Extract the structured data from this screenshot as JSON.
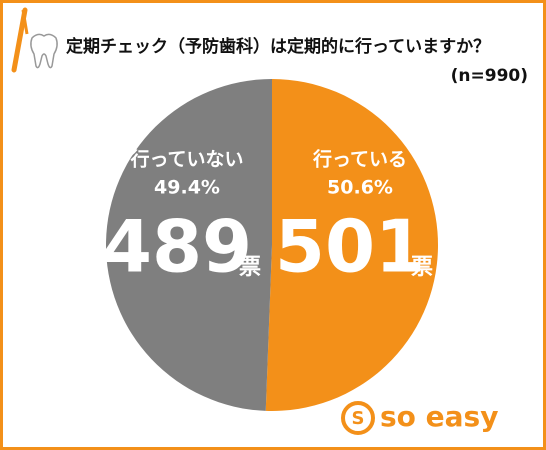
{
  "chart_data": {
    "type": "pie",
    "title": "定期チェック（予防歯科）は定期的に行っていますか？",
    "subtitle": "(n=990)",
    "categories": [
      "行っている",
      "行っていない"
    ],
    "values": [
      50.6,
      49.4
    ],
    "value_labels": [
      "50.6%",
      "49.4%"
    ],
    "counts": [
      501,
      489
    ],
    "unit": "票",
    "colors": [
      "#f39019",
      "#7f7f7f"
    ],
    "logo": "so easy"
  }
}
